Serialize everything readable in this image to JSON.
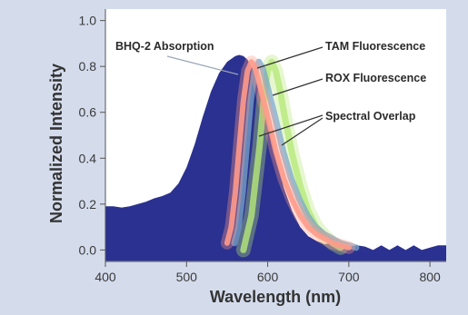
{
  "chart_data": {
    "type": "area",
    "xlabel": "Wavelength (nm)",
    "ylabel": "Normalized Intensity",
    "xlim": [
      400,
      820
    ],
    "ylim": [
      -0.05,
      1.05
    ],
    "x_ticks": [
      400,
      500,
      600,
      700,
      800
    ],
    "y_ticks": [
      0.0,
      0.2,
      0.4,
      0.6,
      0.8,
      1.0
    ],
    "x_tick_labels": [
      "400",
      "500",
      "600",
      "700",
      "800"
    ],
    "y_tick_labels": [
      "0.0",
      "0.2",
      "0.4",
      "0.6",
      "0.8",
      "1.0"
    ],
    "grid": false,
    "colors": {
      "page_background": "#d4dcec",
      "plot_background": "#ffffff",
      "bhq2": "#2a3190",
      "tam": "#ff9a8a",
      "rox": "#b6e879",
      "overlap": "#79a6c8"
    },
    "series": [
      {
        "name": "BHQ-2 Absorption",
        "kind": "area",
        "x": [
          400,
          410,
          420,
          430,
          440,
          450,
          460,
          470,
          480,
          490,
          500,
          510,
          520,
          530,
          540,
          550,
          560,
          565,
          570,
          575,
          580,
          585,
          590,
          600,
          610,
          620,
          630,
          640,
          650,
          660,
          670,
          680,
          690,
          700,
          710,
          720,
          730,
          740,
          750,
          760,
          770,
          780,
          790,
          800,
          810,
          820
        ],
        "y": [
          0.19,
          0.19,
          0.185,
          0.19,
          0.2,
          0.21,
          0.225,
          0.235,
          0.25,
          0.29,
          0.36,
          0.46,
          0.58,
          0.69,
          0.77,
          0.82,
          0.845,
          0.85,
          0.845,
          0.83,
          0.8,
          0.76,
          0.7,
          0.56,
          0.4,
          0.27,
          0.17,
          0.1,
          0.06,
          0.04,
          0.025,
          0.03,
          0.02,
          0.015,
          0.02,
          0.015,
          0.0,
          0.02,
          0.0,
          0.02,
          0.0,
          0.02,
          0.0,
          0.01,
          0.02,
          0.02
        ]
      },
      {
        "name": "TAM Fluorescence",
        "kind": "line",
        "x": [
          550,
          555,
          560,
          565,
          570,
          575,
          580,
          585,
          590,
          600,
          610,
          620,
          630,
          640,
          650,
          660,
          670,
          680,
          690,
          700
        ],
        "y": [
          0.03,
          0.1,
          0.25,
          0.45,
          0.65,
          0.78,
          0.82,
          0.79,
          0.72,
          0.58,
          0.43,
          0.31,
          0.22,
          0.15,
          0.1,
          0.07,
          0.05,
          0.03,
          0.02,
          0.01
        ]
      },
      {
        "name": "ROX Fluorescence",
        "kind": "line",
        "x": [
          570,
          580,
          590,
          595,
          600,
          605,
          610,
          615,
          620,
          630,
          640,
          650,
          660,
          670,
          680,
          690
        ],
        "y": [
          0.0,
          0.15,
          0.45,
          0.65,
          0.78,
          0.82,
          0.78,
          0.7,
          0.6,
          0.42,
          0.28,
          0.17,
          0.1,
          0.06,
          0.03,
          0.01
        ]
      }
    ],
    "annotations": [
      {
        "text": "BHQ-2 Absorption",
        "target": "BHQ-2 Absorption"
      },
      {
        "text": "TAM Fluorescence",
        "target": "TAM Fluorescence"
      },
      {
        "text": "ROX Fluorescence",
        "target": "ROX Fluorescence"
      },
      {
        "text": "Spectral Overlap",
        "target": "TAM / ROX overlap region"
      }
    ]
  }
}
